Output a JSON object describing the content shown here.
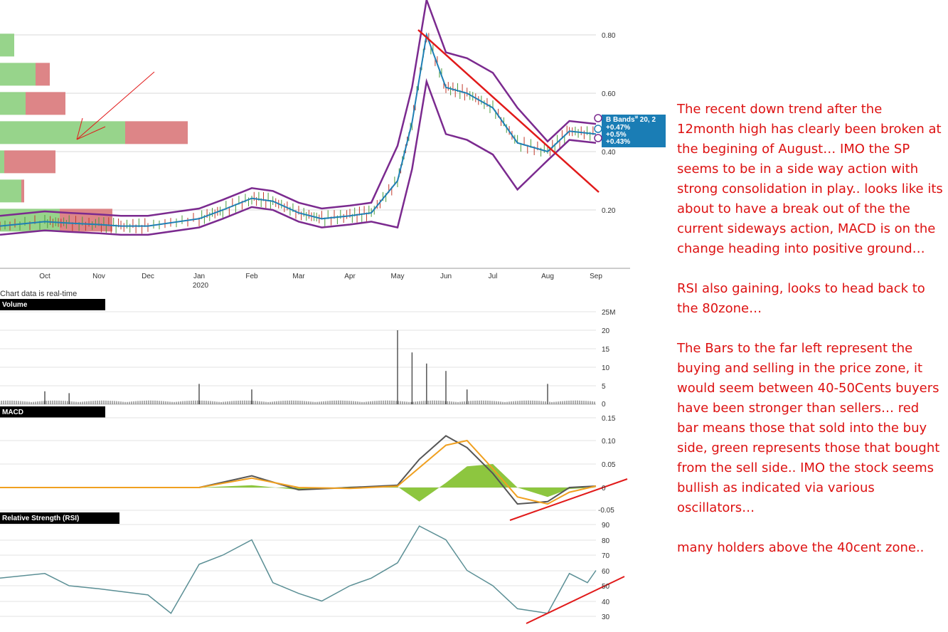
{
  "chart_data": [
    {
      "type": "candlestick",
      "title": "",
      "x_axis": {
        "ticks": [
          "Oct",
          "Nov",
          "Dec",
          "Jan",
          "Feb",
          "Mar",
          "Apr",
          "May",
          "Jun",
          "Jul",
          "Aug",
          "Sep"
        ],
        "year_label": "2020"
      },
      "y_axis": {
        "ticks": [
          "0.20",
          "0.40",
          "0.60",
          "0.80"
        ],
        "range": [
          0.05,
          0.85
        ]
      },
      "price_close": [
        {
          "x": "Sep",
          "y": 0.145
        },
        {
          "x": "Oct",
          "y": 0.16
        },
        {
          "x": "Oct",
          "y": 0.155
        },
        {
          "x": "Nov",
          "y": 0.15
        },
        {
          "x": "Nov",
          "y": 0.145
        },
        {
          "x": "Dec",
          "y": 0.145
        },
        {
          "x": "Jan",
          "y": 0.17
        },
        {
          "x": "Jan",
          "y": 0.2
        },
        {
          "x": "Feb",
          "y": 0.24
        },
        {
          "x": "Feb",
          "y": 0.23
        },
        {
          "x": "Mar",
          "y": 0.19
        },
        {
          "x": "Mar",
          "y": 0.17
        },
        {
          "x": "Apr",
          "y": 0.18
        },
        {
          "x": "Apr",
          "y": 0.19
        },
        {
          "x": "May",
          "y": 0.3
        },
        {
          "x": "May",
          "y": 0.5
        },
        {
          "x": "May",
          "y": 0.8
        },
        {
          "x": "Jun",
          "y": 0.62
        },
        {
          "x": "Jun",
          "y": 0.6
        },
        {
          "x": "Jul",
          "y": 0.55
        },
        {
          "x": "Jul",
          "y": 0.43
        },
        {
          "x": "Aug",
          "y": 0.4
        },
        {
          "x": "Aug",
          "y": 0.47
        },
        {
          "x": "Sep",
          "y": 0.46
        }
      ],
      "bollinger": {
        "label": "B Bands",
        "params": "20, 2",
        "readouts": [
          "+0.47%",
          "+0.5%",
          "+0.43%"
        ],
        "upper_color": "#7b2a8f",
        "middle_color": "#1f7fb5"
      },
      "trendline_color": "#e11a1a",
      "volume_by_price": {
        "buy_color": "#8ccf7e",
        "sell_color": "#d9787a",
        "bars": [
          {
            "price": 0.76,
            "buy": 10,
            "sell": 0
          },
          {
            "price": 0.66,
            "buy": 25,
            "sell": 10
          },
          {
            "price": 0.56,
            "buy": 18,
            "sell": 28
          },
          {
            "price": 0.46,
            "buy": 88,
            "sell": 44
          },
          {
            "price": 0.36,
            "buy": 3,
            "sell": 36
          },
          {
            "price": 0.26,
            "buy": 15,
            "sell": 2
          },
          {
            "price": 0.16,
            "buy": 42,
            "sell": 37
          }
        ]
      },
      "footnote": "Chart data is real-time"
    },
    {
      "type": "bar",
      "title": "Volume",
      "y_axis": {
        "ticks": [
          "0",
          "5",
          "10",
          "15",
          "20",
          "25M"
        ],
        "range": [
          0,
          25
        ]
      },
      "spikes": [
        {
          "x": "Oct",
          "y": 3.5
        },
        {
          "x": "Oct",
          "y": 3
        },
        {
          "x": "Jan",
          "y": 5.5
        },
        {
          "x": "Feb",
          "y": 4
        },
        {
          "x": "May",
          "y": 20
        },
        {
          "x": "May",
          "y": 14
        },
        {
          "x": "May",
          "y": 11
        },
        {
          "x": "Jun",
          "y": 9
        },
        {
          "x": "Jun",
          "y": 4
        },
        {
          "x": "Aug",
          "y": 5.5
        }
      ],
      "baseline": 1
    },
    {
      "type": "line",
      "title": "MACD",
      "y_axis": {
        "ticks": [
          "-0.05",
          "0",
          "0.05",
          "0.10",
          "0.15"
        ],
        "range": [
          -0.05,
          0.15
        ]
      },
      "series": [
        {
          "name": "",
          "color": "#555555",
          "values": [
            {
              "x": "Sep",
              "y": 0.0
            },
            {
              "x": "Jan",
              "y": 0.0
            },
            {
              "x": "Feb",
              "y": 0.025
            },
            {
              "x": "Mar",
              "y": -0.005
            },
            {
              "x": "Apr",
              "y": 0.0
            },
            {
              "x": "May",
              "y": 0.005
            },
            {
              "x": "May",
              "y": 0.06
            },
            {
              "x": "Jun",
              "y": 0.11
            },
            {
              "x": "Jun",
              "y": 0.085
            },
            {
              "x": "Jul",
              "y": 0.03
            },
            {
              "x": "Jul",
              "y": -0.035
            },
            {
              "x": "Aug",
              "y": -0.03
            },
            {
              "x": "Aug",
              "y": 0.0
            },
            {
              "x": "Sep",
              "y": 0.003
            }
          ]
        },
        {
          "name": "",
          "color": "#f0a020",
          "values": [
            {
              "x": "Sep",
              "y": 0.0
            },
            {
              "x": "Jan",
              "y": 0.0
            },
            {
              "x": "Feb",
              "y": 0.02
            },
            {
              "x": "Mar",
              "y": 0.0
            },
            {
              "x": "Apr",
              "y": -0.002
            },
            {
              "x": "May",
              "y": 0.003
            },
            {
              "x": "Jun",
              "y": 0.09
            },
            {
              "x": "Jun",
              "y": 0.1
            },
            {
              "x": "Jul",
              "y": 0.04
            },
            {
              "x": "Jul",
              "y": -0.02
            },
            {
              "x": "Aug",
              "y": -0.035
            },
            {
              "x": "Aug",
              "y": -0.01
            },
            {
              "x": "Sep",
              "y": 0.003
            }
          ]
        }
      ],
      "histogram_color": "#8dc63f",
      "trendline_color": "#e11a1a"
    },
    {
      "type": "line",
      "title": "Relative Strength (RSI)",
      "y_axis": {
        "ticks": [
          "30",
          "40",
          "50",
          "60",
          "70",
          "80",
          "90"
        ],
        "range": [
          30,
          90
        ]
      },
      "series": [
        {
          "name": "",
          "color": "#5b8f95",
          "values": [
            {
              "x": "Sep",
              "y": 55
            },
            {
              "x": "Oct",
              "y": 58
            },
            {
              "x": "Oct",
              "y": 50
            },
            {
              "x": "Nov",
              "y": 48
            },
            {
              "x": "Dec",
              "y": 44
            },
            {
              "x": "Dec",
              "y": 32
            },
            {
              "x": "Jan",
              "y": 64
            },
            {
              "x": "Jan",
              "y": 70
            },
            {
              "x": "Feb",
              "y": 80
            },
            {
              "x": "Feb",
              "y": 52
            },
            {
              "x": "Mar",
              "y": 45
            },
            {
              "x": "Mar",
              "y": 40
            },
            {
              "x": "Apr",
              "y": 50
            },
            {
              "x": "Apr",
              "y": 55
            },
            {
              "x": "May",
              "y": 65
            },
            {
              "x": "May",
              "y": 89
            },
            {
              "x": "Jun",
              "y": 80
            },
            {
              "x": "Jun",
              "y": 60
            },
            {
              "x": "Jul",
              "y": 50
            },
            {
              "x": "Jul",
              "y": 35
            },
            {
              "x": "Aug",
              "y": 32
            },
            {
              "x": "Aug",
              "y": 58
            },
            {
              "x": "Sep",
              "y": 52
            },
            {
              "x": "Sep",
              "y": 60
            }
          ]
        }
      ],
      "trendline_color": "#e11a1a"
    }
  ],
  "annotation": {
    "color": "#dd1111",
    "paragraphs": [
      "The recent down trend after the 12month high has clearly been broken at the begining of August… IMO the SP seems to be in a side way action with strong consolidation in play.. looks like its about to have a break out of the the current sideways action, MACD is on the change heading into positive ground…",
      "RSI also gaining, looks to head back to the 80zone…",
      "The Bars to the far left represent the buying and selling in the price zone, it would seem between 40-50Cents buyers have been stronger than sellers… red bar means those that sold into the buy side, green represents those that bought from the sell side.. IMO the stock seems bullish as indicated via various oscillators…",
      "many holders above the 40cent zone.."
    ]
  }
}
